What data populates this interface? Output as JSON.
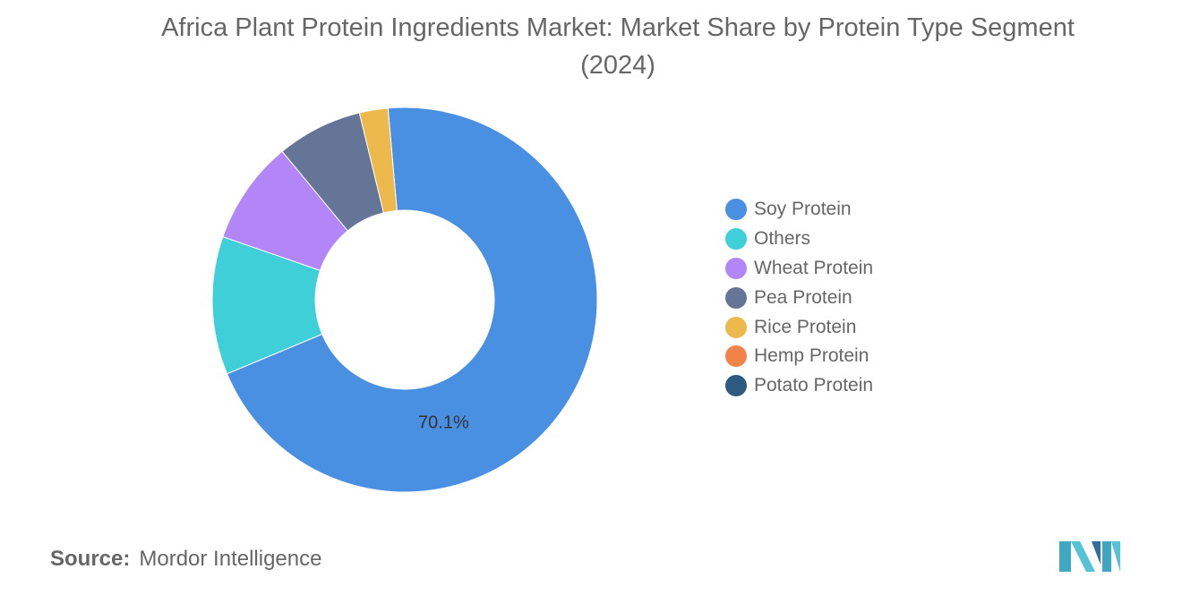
{
  "chart": {
    "title": "Africa Plant Protein Ingredients Market: Market Share by Protein Type Segment (2024)"
  },
  "chart_data": {
    "type": "pie",
    "variant": "donut",
    "title": "Africa Plant Protein Ingredients Market: Market Share by Protein Type Segment (2024)",
    "unit": "%",
    "legend_position": "right",
    "slices": [
      {
        "name": "Soy Protein",
        "value": 70.1,
        "color": "#4a90e2",
        "label": "70.1%"
      },
      {
        "name": "Others",
        "value": 11.6,
        "color": "#3ecfd8",
        "label": ""
      },
      {
        "name": "Wheat Protein",
        "value": 8.7,
        "color": "#b386f7",
        "label": ""
      },
      {
        "name": "Pea Protein",
        "value": 7.2,
        "color": "#647597",
        "label": ""
      },
      {
        "name": "Rice Protein",
        "value": 2.4,
        "color": "#edb94c",
        "label": ""
      },
      {
        "name": "Hemp Protein",
        "value": 0,
        "color": "#f0824a",
        "label": ""
      },
      {
        "name": "Potato Protein",
        "value": 0,
        "color": "#2d5a7f",
        "label": ""
      }
    ]
  },
  "footer": {
    "source_label": "Source:",
    "source_value": "Mordor Intelligence",
    "logo_icon": "mordor-intelligence-logo-icon"
  }
}
